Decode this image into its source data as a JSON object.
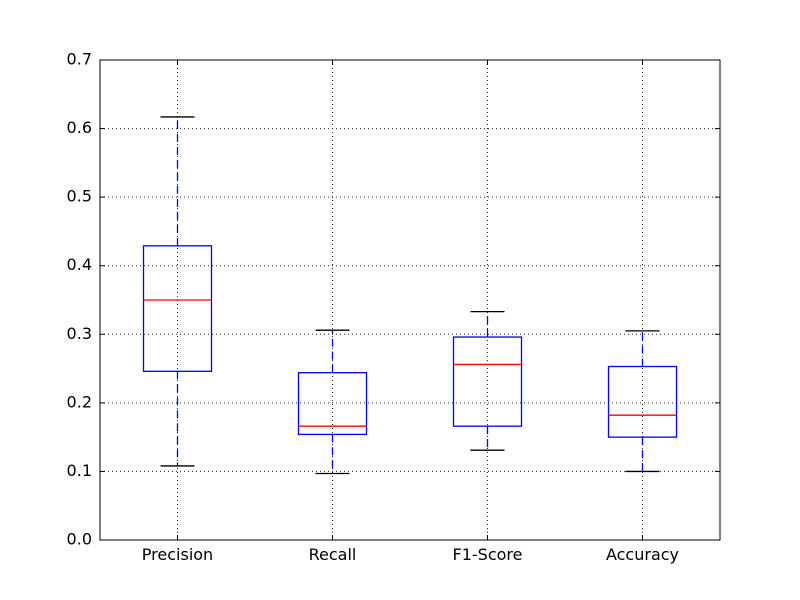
{
  "chart_data": {
    "type": "boxplot",
    "title": "",
    "xlabel": "",
    "ylabel": "",
    "categories": [
      "Precision",
      "Recall",
      "F1-Score",
      "Accuracy"
    ],
    "boxes": [
      {
        "name": "Precision",
        "whisker_low": 0.108,
        "q1": 0.246,
        "median": 0.35,
        "q3": 0.429,
        "whisker_high": 0.617
      },
      {
        "name": "Recall",
        "whisker_low": 0.097,
        "q1": 0.154,
        "median": 0.166,
        "q3": 0.244,
        "whisker_high": 0.306
      },
      {
        "name": "F1-Score",
        "whisker_low": 0.131,
        "q1": 0.166,
        "median": 0.256,
        "q3": 0.296,
        "whisker_high": 0.333
      },
      {
        "name": "Accuracy",
        "whisker_low": 0.1,
        "q1": 0.15,
        "median": 0.182,
        "q3": 0.253,
        "whisker_high": 0.305
      }
    ],
    "ylim": [
      0.0,
      0.7
    ],
    "yticks": [
      "0.0",
      "0.1",
      "0.2",
      "0.3",
      "0.4",
      "0.5",
      "0.6",
      "0.7"
    ],
    "grid": true,
    "colors": {
      "box": "#0000ff",
      "whisker": "#0000ff",
      "median": "#ff0000",
      "cap": "#000000"
    }
  }
}
